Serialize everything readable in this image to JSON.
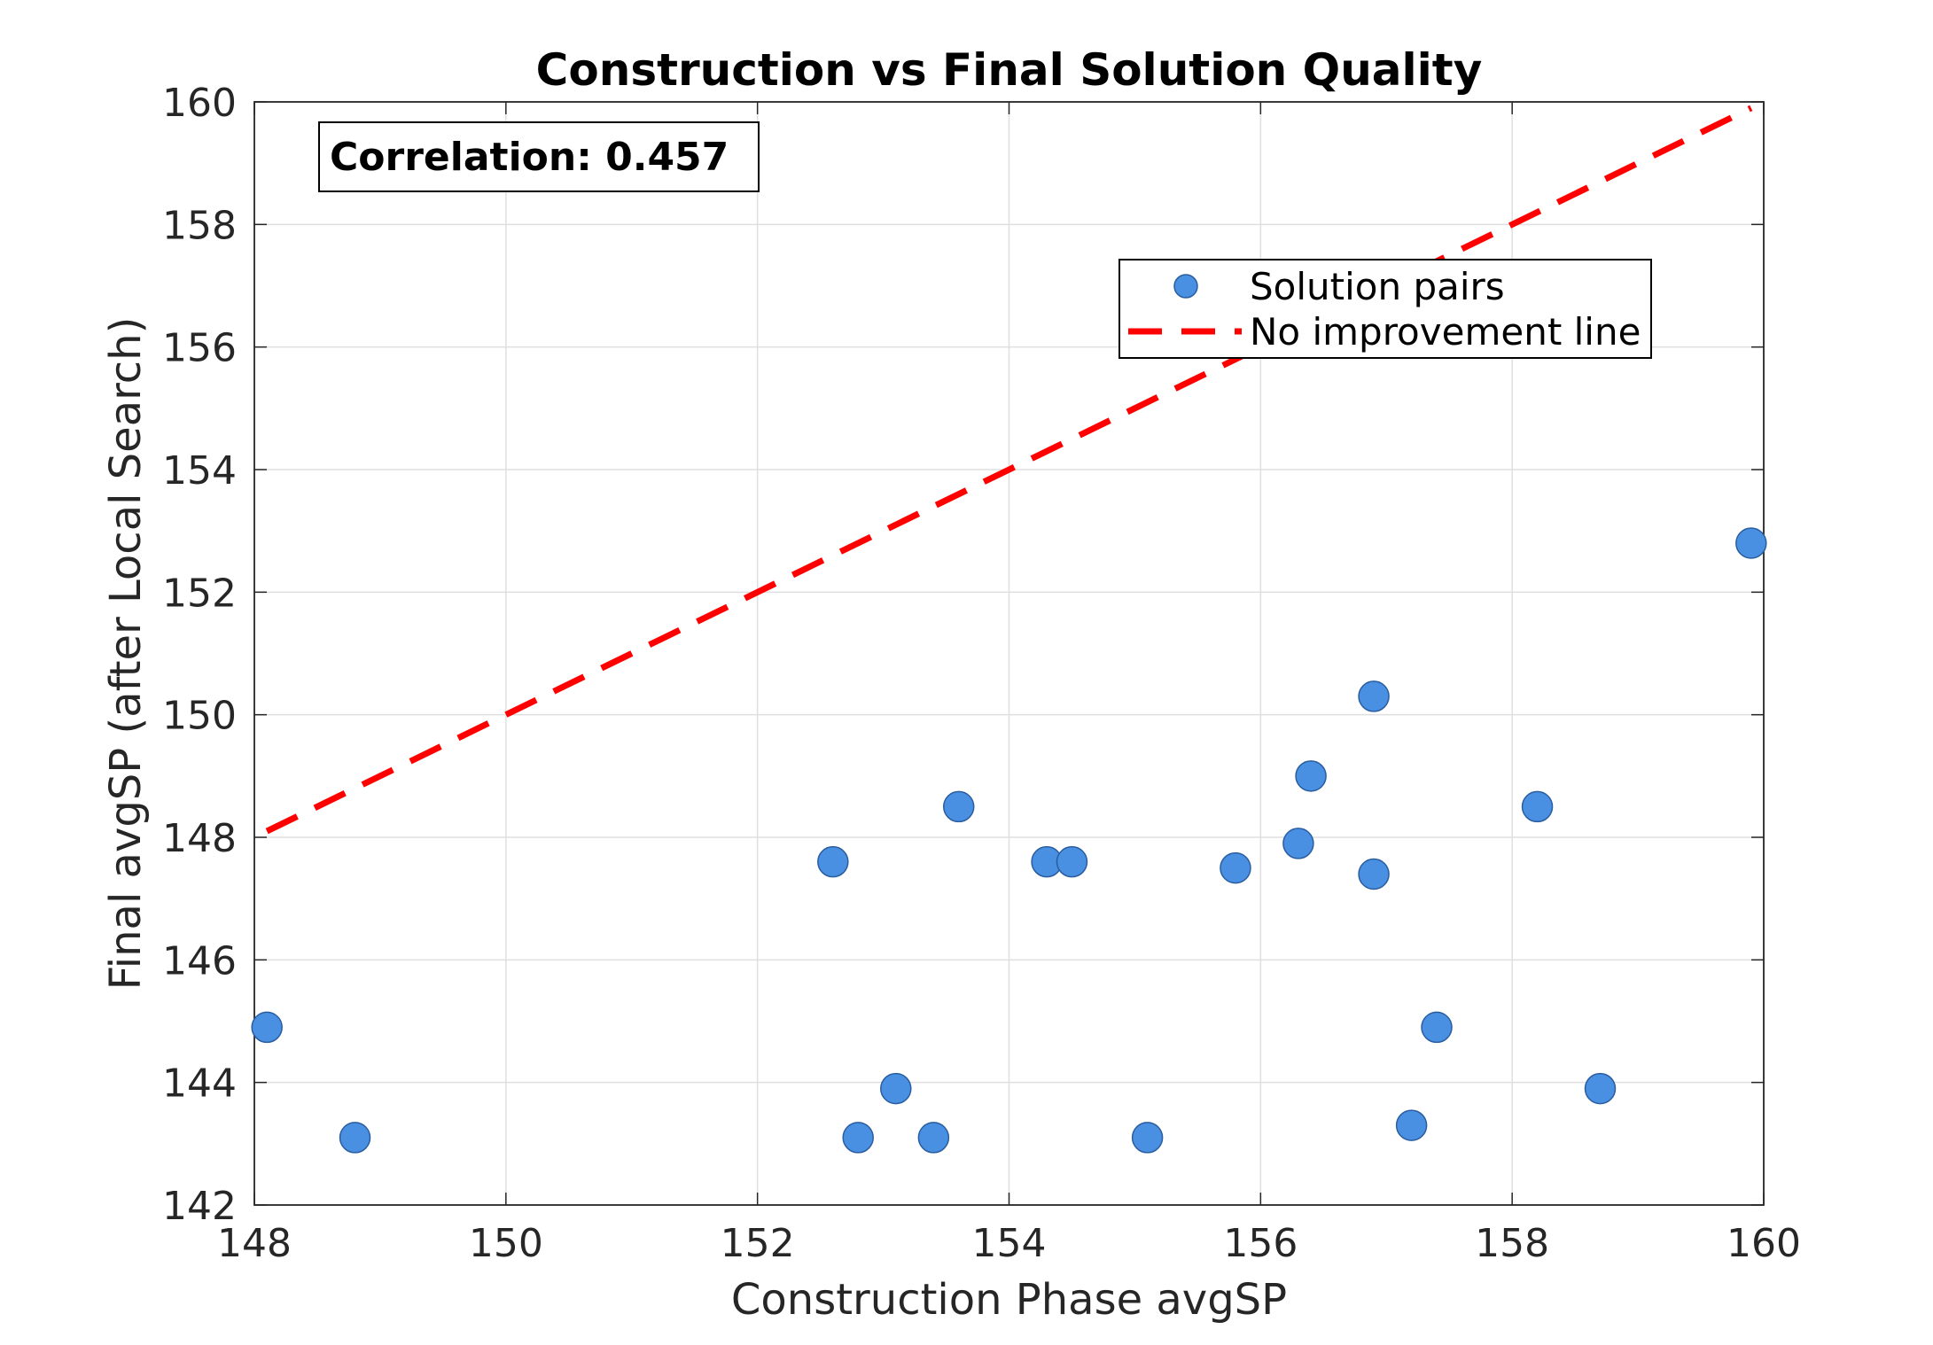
{
  "chart_data": {
    "type": "scatter",
    "title": "Construction vs Final Solution Quality",
    "xlabel": "Construction Phase avgSP",
    "ylabel": "Final avgSP (after Local Search)",
    "xlim": [
      148,
      160
    ],
    "ylim": [
      142,
      160
    ],
    "x_ticks": [
      "148",
      "150",
      "152",
      "154",
      "156",
      "158",
      "160"
    ],
    "y_ticks": [
      "142",
      "144",
      "146",
      "148",
      "150",
      "152",
      "154",
      "156",
      "158",
      "160"
    ],
    "grid": true,
    "annotation": "Correlation: 0.457",
    "legend_position": "upper-right",
    "series": [
      {
        "name": "Solution pairs",
        "kind": "points",
        "color": "#4a90e2",
        "points": [
          [
            148.1,
            144.9
          ],
          [
            148.8,
            143.1
          ],
          [
            152.6,
            147.6
          ],
          [
            152.8,
            143.1
          ],
          [
            153.1,
            143.9
          ],
          [
            153.4,
            143.1
          ],
          [
            153.6,
            148.5
          ],
          [
            154.3,
            147.6
          ],
          [
            154.5,
            147.6
          ],
          [
            155.1,
            143.1
          ],
          [
            155.8,
            147.5
          ],
          [
            156.3,
            147.9
          ],
          [
            156.4,
            149.0
          ],
          [
            156.9,
            150.3
          ],
          [
            156.9,
            147.4
          ],
          [
            157.2,
            143.3
          ],
          [
            157.4,
            144.9
          ],
          [
            158.2,
            148.5
          ],
          [
            158.7,
            143.9
          ],
          [
            159.9,
            152.8
          ]
        ]
      },
      {
        "name": "No improvement line",
        "kind": "line",
        "color": "#ff0000",
        "style": "dashed",
        "points": [
          [
            148.1,
            148.1
          ],
          [
            159.9,
            159.9
          ]
        ]
      }
    ]
  }
}
